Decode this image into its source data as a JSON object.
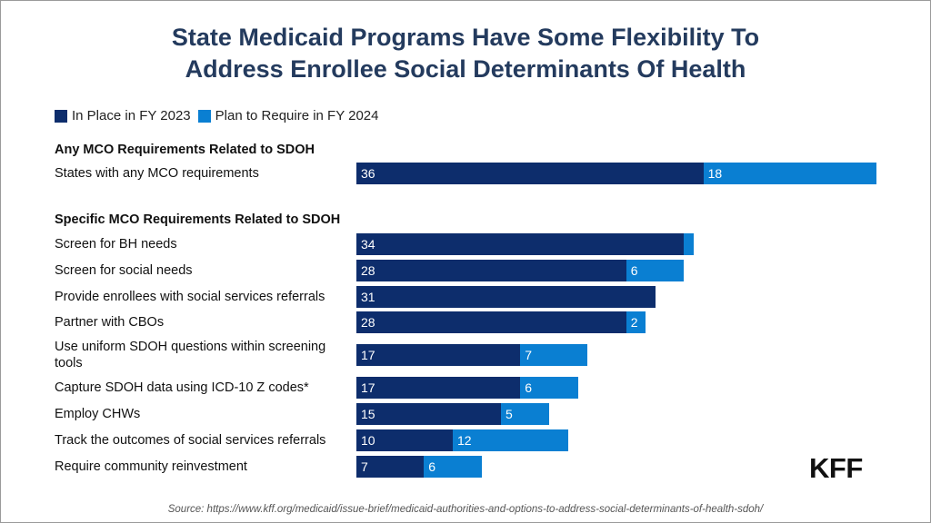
{
  "title_line1": "State Medicaid Programs Have Some Flexibility To",
  "title_line2": "Address Enrollee Social Determinants Of Health",
  "source": "Source: https://www.kff.org/medicaid/issue-brief/medicaid-authorities-and-options-to-address-social-determinants-of-health-sdoh/",
  "logo_text": "KFF",
  "colors": {
    "series1": "#0d2d6c",
    "series2": "#0a7fd2"
  },
  "chart_data": {
    "type": "bar",
    "orientation": "horizontal",
    "stacked": true,
    "title": "State Medicaid Programs Have Some Flexibility To Address Enrollee Social Determinants Of Health",
    "legend": [
      "In Place in FY 2023",
      "Plan to Require in FY 2024"
    ],
    "sections": [
      {
        "heading": "Any MCO Requirements Related to SDOH",
        "rows": [
          {
            "label": "States with any MCO requirements",
            "values": [
              36,
              18
            ],
            "shown": [
              "36",
              "18"
            ]
          }
        ]
      },
      {
        "heading": "Specific MCO Requirements Related to SDOH",
        "rows": [
          {
            "label": "Screen for BH needs",
            "values": [
              34,
              1
            ],
            "shown": [
              "34",
              ""
            ]
          },
          {
            "label": "Screen for social needs",
            "values": [
              28,
              6
            ],
            "shown": [
              "28",
              "6"
            ]
          },
          {
            "label": "Provide enrollees with social services referrals",
            "values": [
              31,
              0
            ],
            "shown": [
              "31",
              ""
            ]
          },
          {
            "label": "Partner with CBOs",
            "values": [
              28,
              2
            ],
            "shown": [
              "28",
              "2"
            ]
          },
          {
            "label": "Use uniform SDOH questions within screening tools",
            "values": [
              17,
              7
            ],
            "shown": [
              "17",
              "7"
            ]
          },
          {
            "label": "Capture SDOH data using ICD-10 Z codes*",
            "values": [
              17,
              6
            ],
            "shown": [
              "17",
              "6"
            ]
          },
          {
            "label": "Employ CHWs",
            "values": [
              15,
              5
            ],
            "shown": [
              "15",
              "5"
            ]
          },
          {
            "label": "Track the outcomes of social services referrals",
            "values": [
              10,
              12
            ],
            "shown": [
              "10",
              "12"
            ]
          },
          {
            "label": "Require community reinvestment",
            "values": [
              7,
              6
            ],
            "shown": [
              "7",
              "6"
            ]
          }
        ]
      }
    ],
    "xlim": [
      0,
      54
    ]
  }
}
